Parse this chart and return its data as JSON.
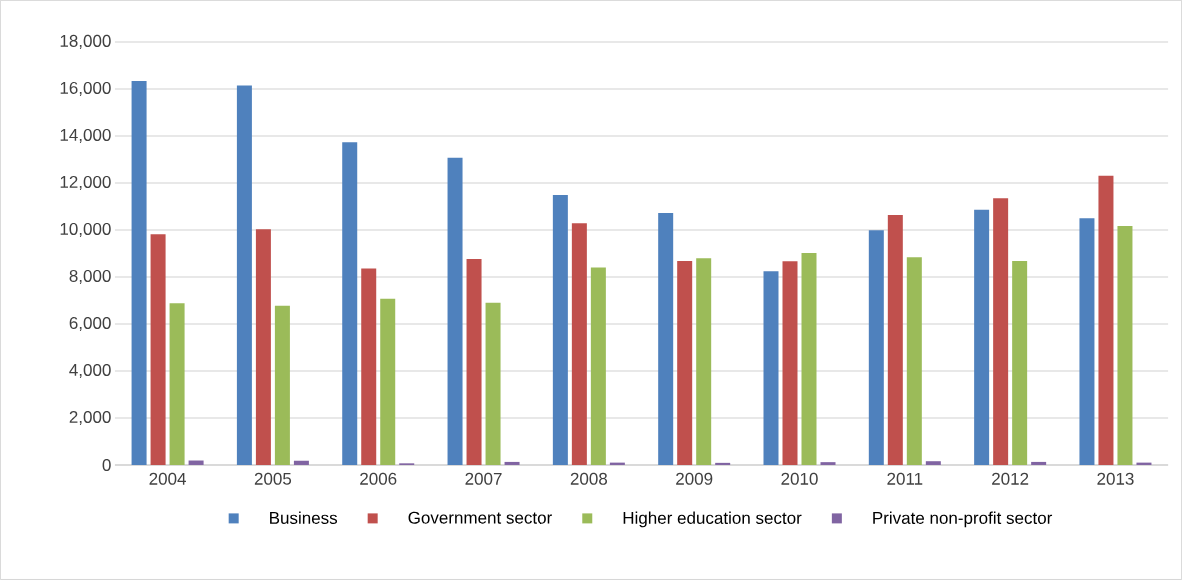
{
  "chart_data": {
    "type": "bar",
    "categories": [
      "2004",
      "2005",
      "2006",
      "2007",
      "2008",
      "2009",
      "2010",
      "2011",
      "2012",
      "2013"
    ],
    "series": [
      {
        "name": "Business",
        "color": "#4f81bd",
        "values": [
          16340,
          16150,
          13730,
          13070,
          11490,
          10720,
          8240,
          9990,
          10860,
          10500
        ]
      },
      {
        "name": "Government sector",
        "color": "#c0504d",
        "values": [
          9820,
          10030,
          8360,
          8760,
          10280,
          8680,
          8670,
          10640,
          11350,
          12310
        ]
      },
      {
        "name": "Higher education sector",
        "color": "#9bbb59",
        "values": [
          6880,
          6770,
          7070,
          6900,
          8400,
          8800,
          9020,
          8840,
          8680,
          10170
        ]
      },
      {
        "name": "Private non-profit sector",
        "color": "#8064a2",
        "values": [
          190,
          180,
          70,
          130,
          100,
          90,
          120,
          160,
          130,
          100
        ]
      }
    ],
    "ylim": [
      0,
      18000
    ],
    "yticks": [
      {
        "value": 0,
        "label": "0"
      },
      {
        "value": 2000,
        "label": "2,000"
      },
      {
        "value": 4000,
        "label": "4,000"
      },
      {
        "value": 6000,
        "label": "6,000"
      },
      {
        "value": 8000,
        "label": "8,000"
      },
      {
        "value": 10000,
        "label": "10,000"
      },
      {
        "value": 12000,
        "label": "12,000"
      },
      {
        "value": 14000,
        "label": "14,000"
      },
      {
        "value": 16000,
        "label": "16,000"
      },
      {
        "value": 18000,
        "label": "18,000"
      }
    ],
    "grid": "y",
    "legend": "bottom"
  }
}
